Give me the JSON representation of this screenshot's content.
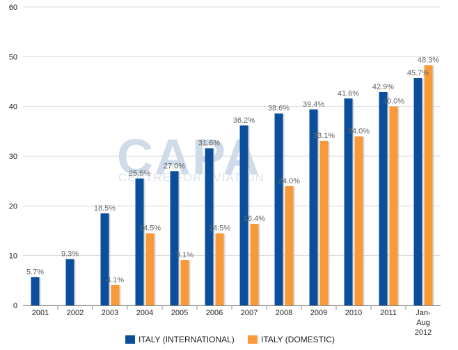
{
  "chart_data": {
    "type": "bar",
    "title": "",
    "xlabel": "",
    "ylabel": "",
    "categories": [
      "2001",
      "2002",
      "2003",
      "2004",
      "2005",
      "2006",
      "2007",
      "2008",
      "2009",
      "2010",
      "2011",
      "Jan-Aug 2012"
    ],
    "ylim": [
      0,
      60
    ],
    "yticks": [
      0,
      10,
      20,
      30,
      40,
      50,
      60
    ],
    "grid": true,
    "legend_position": "bottom-center",
    "series": [
      {
        "name": "ITALY (INTERNATIONAL)",
        "color": "#0b4f9c",
        "values": [
          5.7,
          9.3,
          18.5,
          25.5,
          27.0,
          31.6,
          36.2,
          38.6,
          39.4,
          41.6,
          42.9,
          45.7
        ],
        "labels": [
          "5.7%",
          "9.3%",
          "18.5%",
          "25.5%",
          "27.0%",
          "31.6%",
          "36.2%",
          "38.6%",
          "39.4%",
          "41.6%",
          "42.9%",
          "45.7%"
        ]
      },
      {
        "name": "ITALY (DOMESTIC)",
        "color": "#f89a3a",
        "values": [
          null,
          null,
          4.1,
          14.5,
          9.1,
          14.5,
          16.4,
          24.0,
          33.1,
          34.0,
          40.0,
          48.3
        ],
        "labels": [
          "",
          "",
          "4.1%",
          "14.5%",
          "9.1%",
          "14.5%",
          "16.4%",
          "24.0%",
          "33.1%",
          "34.0%",
          "40.0%",
          "48.3%"
        ]
      }
    ]
  },
  "watermark": {
    "logo": "CAPA",
    "subtitle": "CENTRE FOR AVIATION"
  }
}
